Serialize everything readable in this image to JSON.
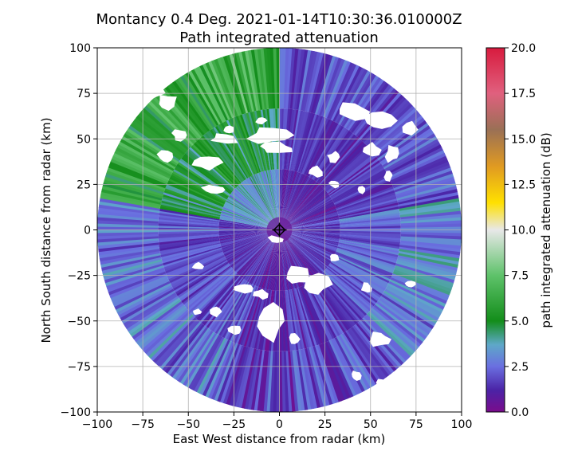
{
  "chart_data": {
    "type": "heatmap",
    "title": "Montancy 0.4 Deg. 2021-01-14T10:30:36.010000Z",
    "subtitle": "Path integrated attenuation",
    "xlabel": "East West distance from radar (km)",
    "ylabel": "North South distance from radar (km)",
    "xlim": [
      -100,
      100
    ],
    "ylim": [
      -100,
      100
    ],
    "xticks": [
      "−100",
      "−75",
      "−50",
      "−25",
      "0",
      "25",
      "50",
      "75",
      "100"
    ],
    "yticks": [
      "100",
      "75",
      "50",
      "25",
      "0",
      "−25",
      "−50",
      "−75",
      "−100"
    ],
    "grid": true,
    "radar_location": [
      0,
      0
    ],
    "max_range_km": 100,
    "colorbar": {
      "label": "path integrated attenuation (dB)",
      "range": [
        0.0,
        20.0
      ],
      "ticks": [
        "20.0",
        "17.5",
        "15.0",
        "12.5",
        "10.0",
        "7.5",
        "5.0",
        "2.5",
        "0.0"
      ],
      "colormap_stops": [
        {
          "value": 0.0,
          "color": "#7a0c8c"
        },
        {
          "value": 1.2,
          "color": "#4b23a6"
        },
        {
          "value": 2.5,
          "color": "#6a6fe0"
        },
        {
          "value": 3.7,
          "color": "#5ea8c8"
        },
        {
          "value": 5.0,
          "color": "#138d1a"
        },
        {
          "value": 7.5,
          "color": "#5ec26a"
        },
        {
          "value": 10.0,
          "color": "#e8e8e8"
        },
        {
          "value": 11.5,
          "color": "#ffe000"
        },
        {
          "value": 13.5,
          "color": "#e09a22"
        },
        {
          "value": 15.5,
          "color": "#9a7055"
        },
        {
          "value": 17.5,
          "color": "#e0607e"
        },
        {
          "value": 20.0,
          "color": "#d81b3e"
        }
      ]
    },
    "sectors": [
      {
        "name": "north-west",
        "azimuth_deg": [
          280,
          360
        ],
        "approx_value_db": 5.5
      },
      {
        "name": "north-east",
        "azimuth_deg": [
          0,
          80
        ],
        "approx_value_db": 2.0
      },
      {
        "name": "east",
        "azimuth_deg": [
          80,
          135
        ],
        "approx_value_db": 3.0
      },
      {
        "name": "south",
        "azimuth_deg": [
          135,
          200
        ],
        "approx_value_db": 1.8
      },
      {
        "name": "south-west",
        "azimuth_deg": [
          200,
          280
        ],
        "approx_value_db": 2.6
      }
    ]
  }
}
